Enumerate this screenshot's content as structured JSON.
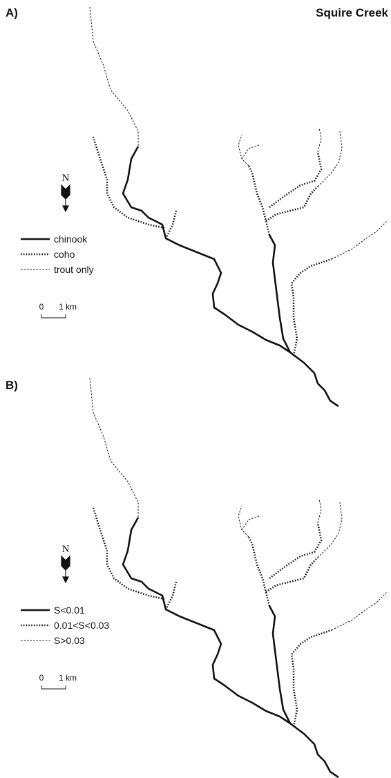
{
  "title": "Squire Creek",
  "panels": [
    {
      "label": "A)",
      "north": "N",
      "legend": [
        "chinook",
        "coho",
        "trout only"
      ],
      "scale": {
        "start": 0,
        "end": "1 km"
      }
    },
    {
      "label": "B)",
      "north": "N",
      "legend": [
        "S<0.01",
        "0.01<S<0.03",
        "S>0.03"
      ],
      "scale": {
        "start": 0,
        "end": "1 km"
      }
    }
  ]
}
